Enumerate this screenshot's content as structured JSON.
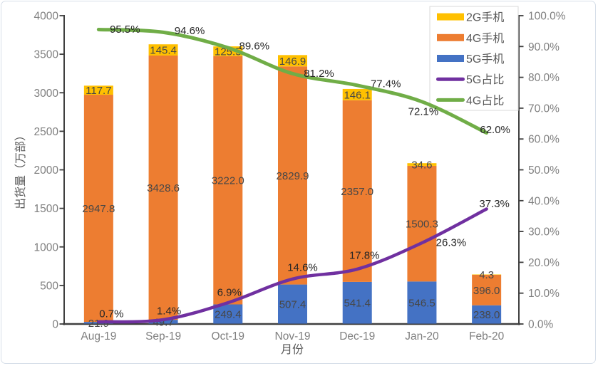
{
  "chart_data": {
    "type": "bar",
    "subtype": "stacked-columns-with-percentage-lines",
    "title": "",
    "xlabel": "月份",
    "ylabel": "出货量（万部）",
    "categories": [
      "Aug-19",
      "Sep-19",
      "Oct-19",
      "Nov-19",
      "Dec-19",
      "Jan-20",
      "Feb-20"
    ],
    "bar_series": [
      {
        "name": "5G手机",
        "color": "#4472C4",
        "values": [
          21.9,
          49.7,
          249.4,
          507.4,
          541.4,
          546.5,
          238.0
        ]
      },
      {
        "name": "4G手机",
        "color": "#ED7D31",
        "values": [
          2947.8,
          3428.6,
          3222.0,
          2829.9,
          2357.0,
          1500.3,
          396.0
        ]
      },
      {
        "name": "2G手机",
        "color": "#FFC000",
        "values": [
          117.7,
          145.4,
          125.5,
          146.9,
          146.1,
          34.6,
          4.3
        ]
      }
    ],
    "line_series": [
      {
        "name": "5G占比",
        "color": "#7030A0",
        "values": [
          0.7,
          1.4,
          6.9,
          14.6,
          17.8,
          26.3,
          37.3
        ]
      },
      {
        "name": "4G占比",
        "color": "#70AD47",
        "values": [
          95.5,
          94.6,
          89.6,
          81.2,
          77.4,
          72.1,
          62.0
        ]
      }
    ],
    "ylim": [
      0,
      4000
    ],
    "y2lim": [
      0,
      100
    ],
    "axis_left_ticks": [
      "4000",
      "3500",
      "3000",
      "2500",
      "2000",
      "1500",
      "1000",
      "500",
      "0"
    ],
    "axis_right_ticks": [
      "100.0%",
      "90.0%",
      "80.0%",
      "70.0%",
      "60.0%",
      "50.0%",
      "40.0%",
      "30.0%",
      "20.0%",
      "10.0%",
      "0.0%"
    ],
    "grid": false,
    "legend_position": "top-right",
    "legend": [
      {
        "label": "2G手机",
        "swatch": "bar",
        "color": "#FFC000"
      },
      {
        "label": "4G手机",
        "swatch": "bar",
        "color": "#ED7D31"
      },
      {
        "label": "5G手机",
        "swatch": "bar",
        "color": "#4472C4"
      },
      {
        "label": "5G占比",
        "swatch": "line",
        "color": "#7030A0"
      },
      {
        "label": "4G占比",
        "swatch": "line",
        "color": "#70AD47"
      }
    ]
  },
  "styles": {
    "axis_line_color": "#3f3f3f",
    "tick_label_color": "#7f7f7f",
    "bar_label_color": "#474747",
    "pct_label_color": "#262626",
    "axis_title_color": "#595959",
    "legend_text_color": "#595959",
    "legend_border_color": "#d9d9d9",
    "frame_border_color": "#d7dfe9"
  }
}
